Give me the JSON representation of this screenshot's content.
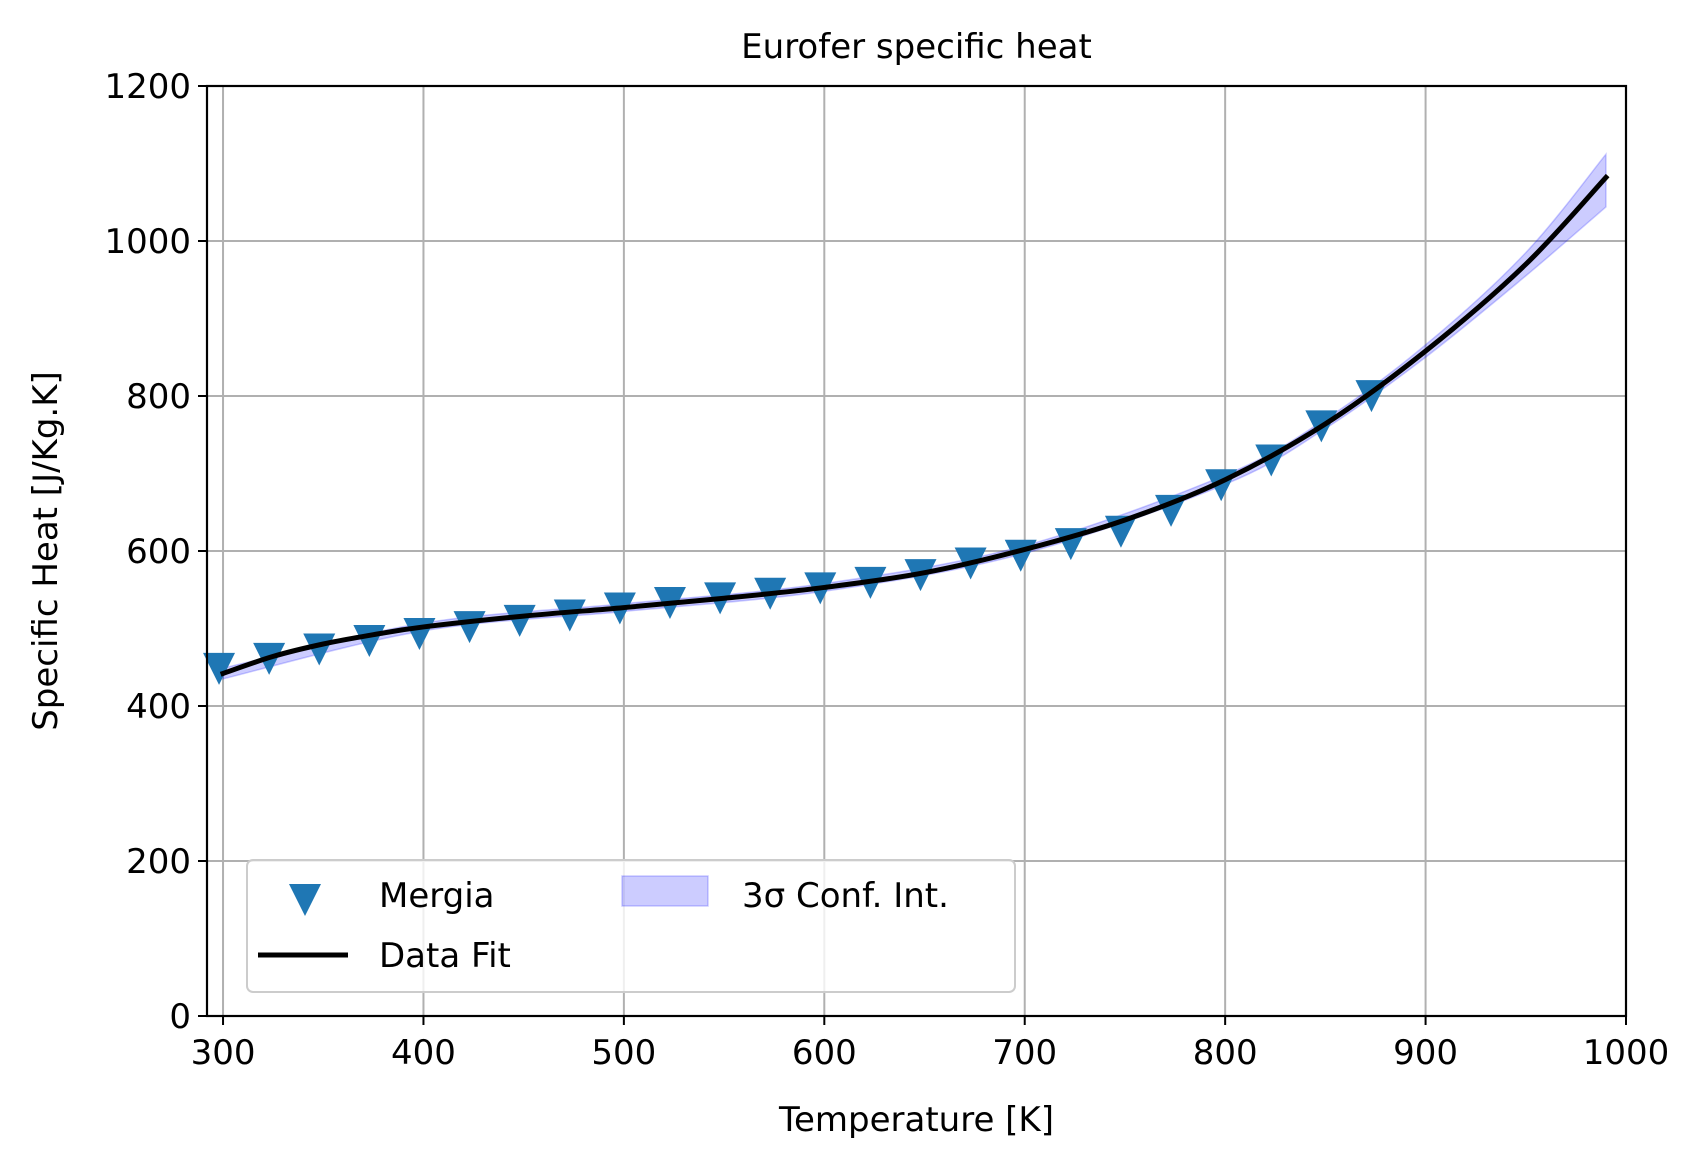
{
  "chart_data": {
    "type": "scatter",
    "title": "Eurofer specific heat",
    "xlabel": "Temperature [K]",
    "ylabel": "Specific Heat [J/Kg.K]",
    "xlim": [
      292,
      1000
    ],
    "ylim": [
      0,
      1200
    ],
    "xticks": [
      300,
      400,
      500,
      600,
      700,
      800,
      900,
      1000
    ],
    "yticks": [
      0,
      200,
      400,
      600,
      800,
      1000,
      1200
    ],
    "grid": true,
    "legend_position": "lower-left",
    "series": [
      {
        "name": "Mergia",
        "kind": "marker",
        "marker": "triangle-down",
        "color": "#1f77b4",
        "x": [
          298,
          323,
          348,
          373,
          398,
          423,
          448,
          473,
          498,
          523,
          548,
          573,
          598,
          623,
          648,
          673,
          698,
          723,
          748,
          773,
          798,
          823,
          848,
          873
        ],
        "y": [
          453,
          466,
          478,
          489,
          498,
          507,
          515,
          522,
          531,
          538,
          544,
          550,
          557,
          564,
          574,
          589,
          599,
          614,
          630,
          657,
          690,
          722,
          766,
          805
        ]
      },
      {
        "name": "Data Fit",
        "kind": "line",
        "color": "#000000",
        "x": [
          300,
          325,
          350,
          375,
          400,
          450,
          500,
          550,
          600,
          650,
          700,
          750,
          800,
          850,
          900,
          950,
          990
        ],
        "y": [
          442,
          464,
          480,
          492,
          502,
          516,
          527,
          539,
          553,
          572,
          602,
          640,
          692,
          764,
          858,
          970,
          1082
        ]
      },
      {
        "name": "3σ Conf. Int.",
        "kind": "band",
        "color": "#0000ff",
        "x": [
          300,
          400,
          500,
          600,
          700,
          800,
          850,
          900,
          950,
          990
        ],
        "upper": [
          449,
          507,
          532,
          558,
          607,
          698,
          770,
          866,
          985,
          1112
        ],
        "lower": [
          435,
          497,
          522,
          548,
          597,
          686,
          758,
          850,
          955,
          1044
        ]
      }
    ],
    "legend": {
      "entries": [
        "Mergia",
        "Data Fit",
        "3σ Conf. Int."
      ]
    }
  }
}
